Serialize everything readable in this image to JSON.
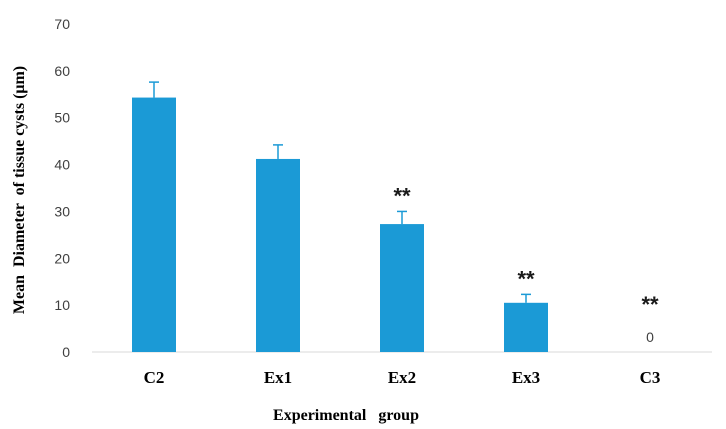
{
  "chart_data": {
    "type": "bar",
    "title": "",
    "xlabel": "Experimental   group",
    "ylabel": "Mean  Diameter  of tissue cysts (μm)",
    "categories": [
      "C2",
      "Ex1",
      "Ex2",
      "Ex3",
      "C3"
    ],
    "values": [
      54.3,
      41.2,
      27.3,
      10.5,
      0
    ],
    "error": [
      3.3,
      3.0,
      2.7,
      1.8,
      0
    ],
    "annotations": [
      "",
      "",
      "**",
      "**",
      "**"
    ],
    "data_labels": [
      "",
      "",
      "",
      "",
      "0"
    ],
    "ylim": [
      0,
      70
    ],
    "yticks": [
      0,
      10,
      20,
      30,
      40,
      50,
      60,
      70
    ],
    "ytick_labels": [
      "0",
      "10",
      "20",
      "30",
      "40",
      "50",
      "60",
      "70"
    ],
    "grid": false,
    "legend": "none",
    "bar_color": "#1b9ad6",
    "error_color": "#1b9ad6"
  }
}
